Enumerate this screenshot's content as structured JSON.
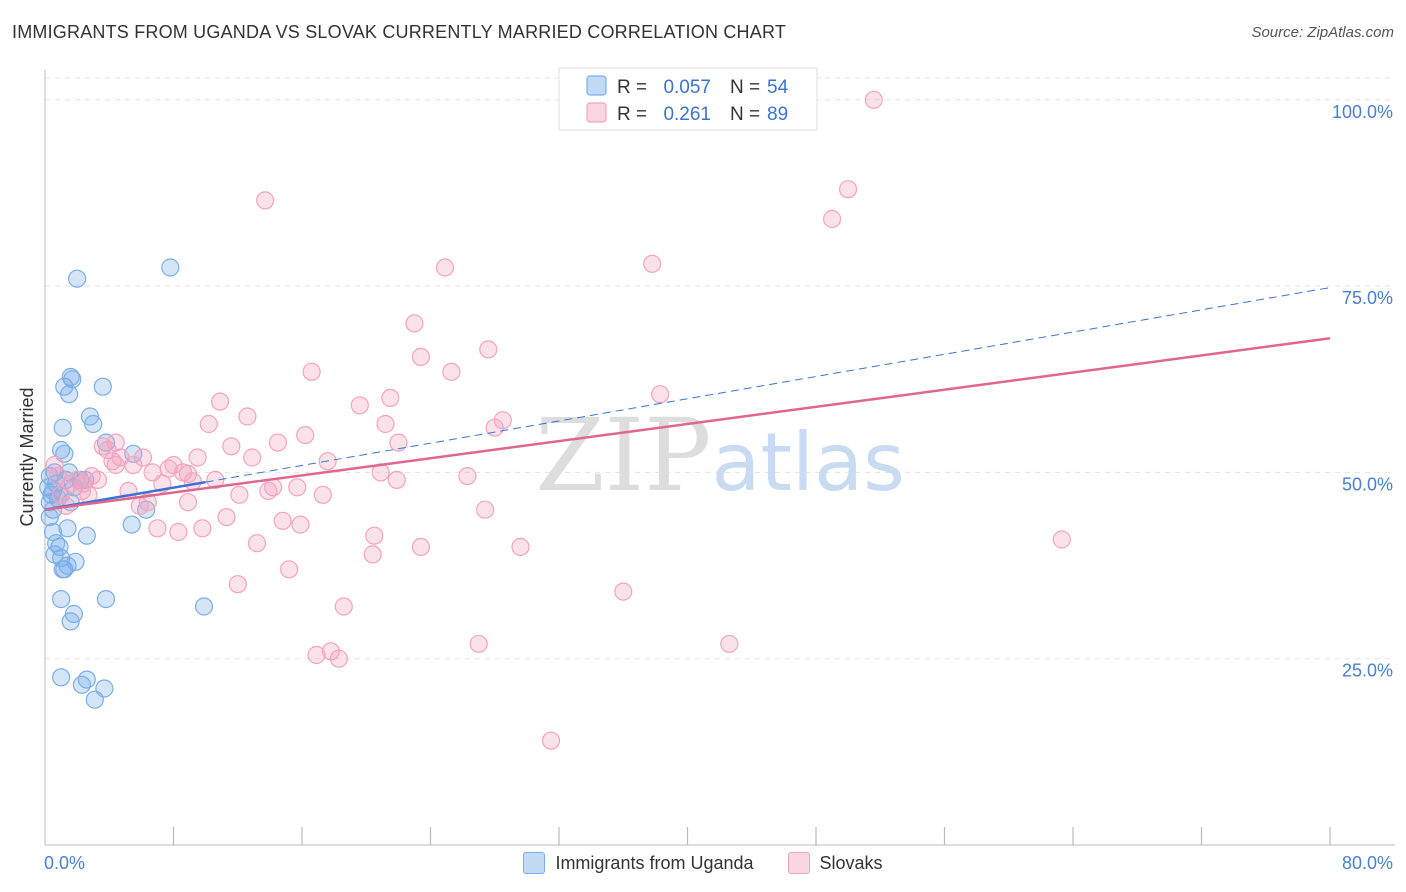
{
  "title": "IMMIGRANTS FROM UGANDA VS SLOVAK CURRENTLY MARRIED CORRELATION CHART",
  "source": "Source: ZipAtlas.com",
  "watermark": "ZIPatlas",
  "chart_data": {
    "type": "scatter",
    "ylabel": "Currently Married",
    "xlabel": "",
    "xlim": [
      0,
      80
    ],
    "ylim": [
      0,
      104
    ],
    "x_tick_labels": [
      "0.0%",
      "80.0%"
    ],
    "y_ticks": [
      {
        "value": 25,
        "label": "25.0%"
      },
      {
        "value": 50,
        "label": "50.0%"
      },
      {
        "value": 75,
        "label": "75.0%"
      },
      {
        "value": 100,
        "label": "100.0%"
      }
    ],
    "grid": true,
    "legend_position": "top-center",
    "series": [
      {
        "name": "Immigrants from Uganda",
        "color": "#7aaee8",
        "line_color": "#3a74d0",
        "R": "0.057",
        "N": "54",
        "trend_solid": [
          [
            0.0,
            45.0
          ],
          [
            10.0,
            48.7
          ]
        ],
        "trend_dashed": [
          [
            10.0,
            48.7
          ],
          [
            80.0,
            74.8
          ]
        ],
        "points": [
          [
            0.2,
            48
          ],
          [
            0.3,
            46
          ],
          [
            0.4,
            47
          ],
          [
            0.5,
            45
          ],
          [
            0.6,
            50
          ],
          [
            0.3,
            44
          ],
          [
            0.5,
            47.5
          ],
          [
            0.7,
            48.5
          ],
          [
            0.8,
            46.5
          ],
          [
            1.0,
            47
          ],
          [
            0.5,
            42
          ],
          [
            0.6,
            39
          ],
          [
            0.7,
            40.5
          ],
          [
            0.9,
            40
          ],
          [
            1.0,
            53
          ],
          [
            1.1,
            56
          ],
          [
            1.2,
            52.5
          ],
          [
            1.2,
            61.5
          ],
          [
            1.5,
            60.5
          ],
          [
            1.7,
            62.5
          ],
          [
            1.6,
            62.8
          ],
          [
            2.0,
            76
          ],
          [
            2.8,
            57.5
          ],
          [
            3.0,
            56.5
          ],
          [
            3.6,
            61.5
          ],
          [
            3.8,
            54
          ],
          [
            5.5,
            52.5
          ],
          [
            7.8,
            77.5
          ],
          [
            1.3,
            49
          ],
          [
            1.5,
            50
          ],
          [
            1.8,
            48
          ],
          [
            2.2,
            49
          ],
          [
            1.4,
            42.5
          ],
          [
            1.6,
            46
          ],
          [
            2.6,
            41.5
          ],
          [
            1.2,
            37
          ],
          [
            1.4,
            37.5
          ],
          [
            1.9,
            38
          ],
          [
            1.0,
            38.5
          ],
          [
            1.0,
            33
          ],
          [
            1.8,
            31
          ],
          [
            1.6,
            30
          ],
          [
            3.8,
            33
          ],
          [
            5.4,
            43
          ],
          [
            6.3,
            45
          ],
          [
            9.9,
            32
          ],
          [
            1.0,
            22.5
          ],
          [
            2.3,
            21.5
          ],
          [
            2.6,
            22.2
          ],
          [
            3.1,
            19.5
          ],
          [
            3.7,
            21
          ],
          [
            1.1,
            37
          ],
          [
            2.5,
            49
          ],
          [
            0.3,
            49.5
          ]
        ]
      },
      {
        "name": "Slovaks",
        "color": "#f4a3bd",
        "line_color": "#e0668f",
        "R": "0.261",
        "N": "89",
        "trend_solid": [
          [
            0.0,
            45.0
          ],
          [
            80.0,
            68.0
          ]
        ],
        "points": [
          [
            0.6,
            51
          ],
          [
            0.8,
            49.5
          ],
          [
            1.0,
            47
          ],
          [
            1.3,
            45.5
          ],
          [
            1.6,
            48.5
          ],
          [
            2.0,
            49
          ],
          [
            2.4,
            48.5
          ],
          [
            2.7,
            47
          ],
          [
            3.3,
            49
          ],
          [
            3.6,
            53.5
          ],
          [
            4.2,
            51.5
          ],
          [
            4.4,
            54
          ],
          [
            4.7,
            52
          ],
          [
            5.2,
            47.5
          ],
          [
            5.5,
            51
          ],
          [
            5.9,
            45.5
          ],
          [
            6.4,
            46
          ],
          [
            6.7,
            50
          ],
          [
            7.0,
            42.5
          ],
          [
            7.3,
            48.5
          ],
          [
            7.7,
            50.5
          ],
          [
            8.0,
            51
          ],
          [
            8.3,
            42
          ],
          [
            8.6,
            50
          ],
          [
            8.9,
            46
          ],
          [
            9.2,
            48.8
          ],
          [
            9.5,
            52
          ],
          [
            9.8,
            42.5
          ],
          [
            10.2,
            56.5
          ],
          [
            10.6,
            49
          ],
          [
            10.9,
            59.5
          ],
          [
            11.3,
            44
          ],
          [
            11.6,
            53.5
          ],
          [
            12.0,
            35
          ],
          [
            12.6,
            57.5
          ],
          [
            12.9,
            52
          ],
          [
            13.2,
            40.5
          ],
          [
            13.7,
            86.5
          ],
          [
            13.9,
            47.5
          ],
          [
            14.2,
            48
          ],
          [
            14.5,
            54
          ],
          [
            14.8,
            43.5
          ],
          [
            15.2,
            37
          ],
          [
            15.7,
            48
          ],
          [
            15.9,
            43
          ],
          [
            16.2,
            55
          ],
          [
            16.6,
            63.5
          ],
          [
            16.9,
            25.5
          ],
          [
            17.3,
            47
          ],
          [
            17.6,
            51.5
          ],
          [
            17.8,
            26
          ],
          [
            18.3,
            25
          ],
          [
            18.6,
            32
          ],
          [
            19.6,
            59
          ],
          [
            20.5,
            41.5
          ],
          [
            20.4,
            39
          ],
          [
            20.9,
            50
          ],
          [
            21.2,
            56.5
          ],
          [
            21.5,
            60
          ],
          [
            21.9,
            49
          ],
          [
            22.0,
            54
          ],
          [
            23.0,
            70
          ],
          [
            23.4,
            65.5
          ],
          [
            23.4,
            40
          ],
          [
            24.9,
            77.5
          ],
          [
            25.3,
            63.5
          ],
          [
            26.3,
            49.5
          ],
          [
            27.0,
            27
          ],
          [
            27.4,
            45
          ],
          [
            27.6,
            66.5
          ],
          [
            28.0,
            56
          ],
          [
            28.5,
            57
          ],
          [
            29.6,
            40
          ],
          [
            31.5,
            14
          ],
          [
            36.0,
            34
          ],
          [
            37.8,
            78
          ],
          [
            38.3,
            60.5
          ],
          [
            42.6,
            27
          ],
          [
            49.0,
            84
          ],
          [
            50.0,
            88
          ],
          [
            51.6,
            100
          ],
          [
            63.3,
            41
          ],
          [
            2.3,
            47.5
          ],
          [
            2.9,
            49.5
          ],
          [
            3.9,
            53
          ],
          [
            4.4,
            51
          ],
          [
            6.1,
            52
          ],
          [
            8.9,
            49.8
          ],
          [
            12.1,
            47
          ]
        ]
      }
    ]
  }
}
